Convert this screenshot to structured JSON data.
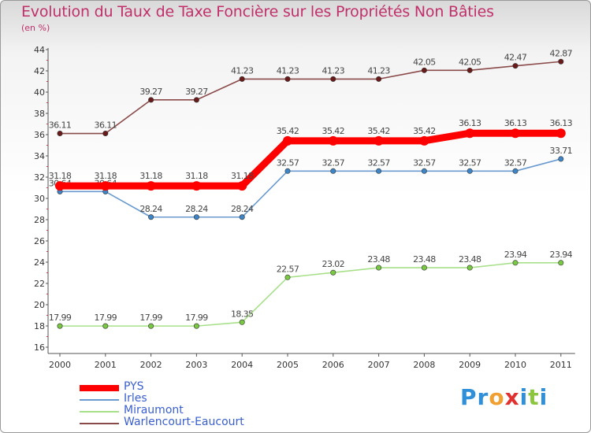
{
  "title": "Evolution du Taux de Taxe Foncière sur les Propriétés Non Bâties",
  "subtitle": "(en %)",
  "logo": {
    "text": "Proxiti",
    "letters": [
      {
        "char": "P",
        "color": "#2f8fd8"
      },
      {
        "char": "r",
        "color": "#2f8fd8"
      },
      {
        "char": "o",
        "color": "#f0a030"
      },
      {
        "char": "x",
        "color": "#e03030"
      },
      {
        "char": "i",
        "color": "#2f8fd8"
      },
      {
        "char": "t",
        "color": "#8cc63f"
      },
      {
        "char": "i",
        "color": "#2f8fd8"
      }
    ]
  },
  "chart_data": {
    "type": "line",
    "title": "Evolution du Taux de Taxe Foncière sur les Propriétés Non Bâties",
    "ylabel": "(en %)",
    "xlabel": "",
    "ylim": [
      16,
      44
    ],
    "ytick_step": 2,
    "grid": false,
    "legend": "bottom-left",
    "categories": [
      "2000",
      "2001",
      "2002",
      "2003",
      "2004",
      "2005",
      "2006",
      "2007",
      "2008",
      "2009",
      "2010",
      "2011"
    ],
    "series": [
      {
        "name": "PYS",
        "color": "#ff0000",
        "emphasis": "thick",
        "values": [
          31.18,
          31.18,
          31.18,
          31.18,
          31.18,
          35.42,
          35.42,
          35.42,
          35.42,
          36.13,
          36.13,
          36.13
        ],
        "labels": [
          "31.18",
          "31.18",
          "31.18",
          "31.18",
          "31.18",
          "35.42",
          "35.42",
          "35.42",
          "35.42",
          "36.13",
          "36.13",
          "36.13"
        ]
      },
      {
        "name": "Irles",
        "color": "#6a9ad0",
        "marker_color": "#3d85c6",
        "values": [
          30.64,
          30.64,
          28.24,
          28.24,
          28.24,
          32.57,
          32.57,
          32.57,
          32.57,
          32.57,
          32.57,
          33.71
        ],
        "labels": [
          "30.64",
          "30.64",
          "28.24",
          "28.24",
          "28.24",
          "32.57",
          "32.57",
          "32.57",
          "32.57",
          "32.57",
          "32.57",
          "33.71"
        ]
      },
      {
        "name": "Miraumont",
        "color": "#a8e08a",
        "marker_color": "#7ac943",
        "values": [
          17.99,
          17.99,
          17.99,
          17.99,
          18.35,
          22.57,
          23.02,
          23.48,
          23.48,
          23.48,
          23.94,
          23.94
        ],
        "labels": [
          "17.99",
          "17.99",
          "17.99",
          "17.99",
          "18.35",
          "22.57",
          "23.02",
          "23.48",
          "23.48",
          "23.48",
          "23.94",
          "23.94"
        ]
      },
      {
        "name": "Warlencourt-Eaucourt",
        "color": "#8b4a4a",
        "marker_color": "#6b1a1a",
        "values": [
          36.11,
          36.11,
          39.27,
          39.27,
          41.23,
          41.23,
          41.23,
          41.23,
          42.05,
          42.05,
          42.47,
          42.87
        ],
        "labels": [
          "36.11",
          "36.11",
          "39.27",
          "39.27",
          "41.23",
          "41.23",
          "41.23",
          "41.23",
          "42.05",
          "42.05",
          "42.47",
          "42.87"
        ]
      }
    ]
  }
}
